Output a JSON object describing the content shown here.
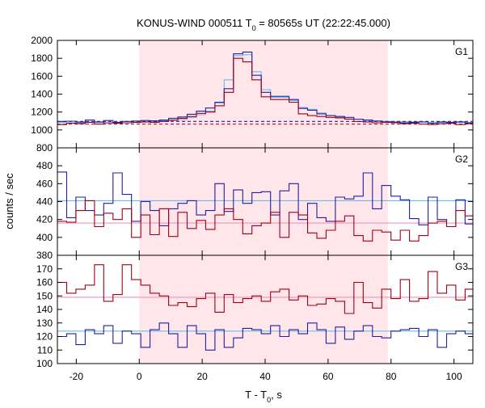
{
  "chart_data": {
    "type": "line",
    "title": "KONUS-WIND 000511 T",
    "title_sub": "0",
    "title_suffix": " = 80565s UT (22:22:45.000)",
    "xlabel": "T - T",
    "xlabel_sub": "0",
    "xlabel_suffix": ", s",
    "ylabel": "counts / sec",
    "xlim": [
      -26,
      106
    ],
    "x_ticks": [
      -20,
      0,
      20,
      40,
      60,
      80,
      100
    ],
    "bin_width": 2.944,
    "x_start": -26,
    "shaded_interval": [
      0,
      79
    ],
    "colors": {
      "dark_red": "#a00010",
      "dark_blue": "#2020a0",
      "light_blue": "#6cb8e8",
      "pink": "#f090c0",
      "shade": "#ffe6ea"
    },
    "panels": [
      {
        "label": "G1",
        "ylim": [
          800,
          2000
        ],
        "y_ticks": [
          800,
          1000,
          1200,
          1400,
          1600,
          1800,
          2000
        ],
        "series": [
          {
            "color": "#6cb8e8",
            "style": "solid",
            "values": [
              1085,
              1080,
              1078,
              1088,
              1082,
              1078,
              1085,
              1080,
              1082,
              1090,
              1095,
              1105,
              1108,
              1115,
              1140,
              1170,
              1210,
              1300,
              1560,
              1830,
              1840,
              1650,
              1450,
              1380,
              1380,
              1330,
              1250,
              1230,
              1190,
              1160,
              1140,
              1125,
              1120,
              1108,
              1100,
              1096,
              1094,
              1092,
              1090,
              1088,
              1086,
              1085,
              1084,
              1083,
              1082
            ]
          },
          {
            "color": "#2020a0",
            "style": "solid",
            "values": [
              1095,
              1098,
              1088,
              1110,
              1090,
              1105,
              1085,
              1095,
              1100,
              1105,
              1102,
              1110,
              1130,
              1145,
              1175,
              1210,
              1245,
              1310,
              1460,
              1850,
              1870,
              1610,
              1420,
              1370,
              1370,
              1340,
              1240,
              1220,
              1180,
              1160,
              1150,
              1140,
              1120,
              1110,
              1100,
              1090,
              1085,
              1080,
              1085,
              1090,
              1075,
              1090,
              1085,
              1090,
              1080
            ]
          },
          {
            "color": "#a00010",
            "style": "solid",
            "values": [
              1060,
              1075,
              1070,
              1085,
              1065,
              1080,
              1075,
              1080,
              1085,
              1090,
              1085,
              1095,
              1110,
              1130,
              1150,
              1185,
              1200,
              1270,
              1420,
              1800,
              1760,
              1560,
              1370,
              1340,
              1340,
              1310,
              1180,
              1160,
              1150,
              1140,
              1135,
              1120,
              1095,
              1090,
              1080,
              1085,
              1080,
              1070,
              1075,
              1065,
              1060,
              1070,
              1075,
              1060,
              1070
            ]
          },
          {
            "color": "#2020a0",
            "style": "dashed",
            "values": [
              1095,
              1095
            ]
          },
          {
            "color": "#a00010",
            "style": "dashed",
            "values": [
              1065,
              1065
            ]
          }
        ]
      },
      {
        "label": "G2",
        "ylim": [
          380,
          500
        ],
        "y_ticks": [
          380,
          400,
          420,
          440,
          460,
          480
        ],
        "series": [
          {
            "color": "#6cb8e8",
            "style": "solid",
            "values": [
              441,
              441
            ]
          },
          {
            "color": "#f090c0",
            "style": "solid",
            "values": [
              416,
              416
            ]
          },
          {
            "color": "#2020a0",
            "style": "solid",
            "values": [
              473,
              422,
              445,
              430,
              425,
              438,
              472,
              448,
              418,
              440,
              430,
              413,
              432,
              438,
              441,
              425,
              430,
              460,
              429,
              453,
              438,
              450,
              451,
              425,
              452,
              460,
              420,
              438,
              422,
              418,
              445,
              443,
              446,
              472,
              432,
              458,
              446,
              442,
              421,
              414,
              445,
              420,
              412,
              442,
              415
            ]
          },
          {
            "color": "#a00010",
            "style": "solid",
            "values": [
              418,
              417,
              430,
              441,
              412,
              427,
              420,
              432,
              400,
              425,
              403,
              432,
              401,
              428,
              410,
              419,
              409,
              425,
              432,
              420,
              404,
              413,
              416,
              428,
              400,
              428,
              425,
              405,
              399,
              408,
              418,
              424,
              402,
              396,
              408,
              406,
              397,
              408,
              396,
              402,
              416,
              418,
              412,
              430,
              424
            ]
          }
        ]
      },
      {
        "label": "G3",
        "ylim": [
          100,
          180
        ],
        "y_ticks": [
          100,
          110,
          120,
          130,
          140,
          150,
          160,
          170
        ],
        "series": [
          {
            "color": "#f090c0",
            "style": "solid",
            "values": [
              149,
              149
            ]
          },
          {
            "color": "#6cb8e8",
            "style": "solid",
            "values": [
              124,
              124
            ]
          },
          {
            "color": "#a00010",
            "style": "solid",
            "values": [
              160,
              152,
              155,
              158,
              173,
              146,
              151,
              173,
              162,
              158,
              152,
              150,
              143,
              145,
              142,
              148,
              152,
              138,
              151,
              145,
              148,
              150,
              146,
              153,
              155,
              147,
              150,
              143,
              144,
              148,
              146,
              137,
              160,
              145,
              141,
              155,
              148,
              162,
              146,
              148,
              168,
              152,
              158,
              147,
              155
            ]
          },
          {
            "color": "#2020a0",
            "style": "solid",
            "values": [
              120,
              122,
              114,
              125,
              122,
              128,
              115,
              124,
              122,
              112,
              125,
              130,
              122,
              112,
              128,
              122,
              110,
              125,
              112,
              119,
              126,
              125,
              122,
              128,
              120,
              125,
              122,
              130,
              125,
              115,
              127,
              118,
              124,
              128,
              120,
              119,
              124,
              125,
              126,
              120,
              125,
              112,
              122,
              124,
              122
            ]
          }
        ]
      }
    ]
  }
}
